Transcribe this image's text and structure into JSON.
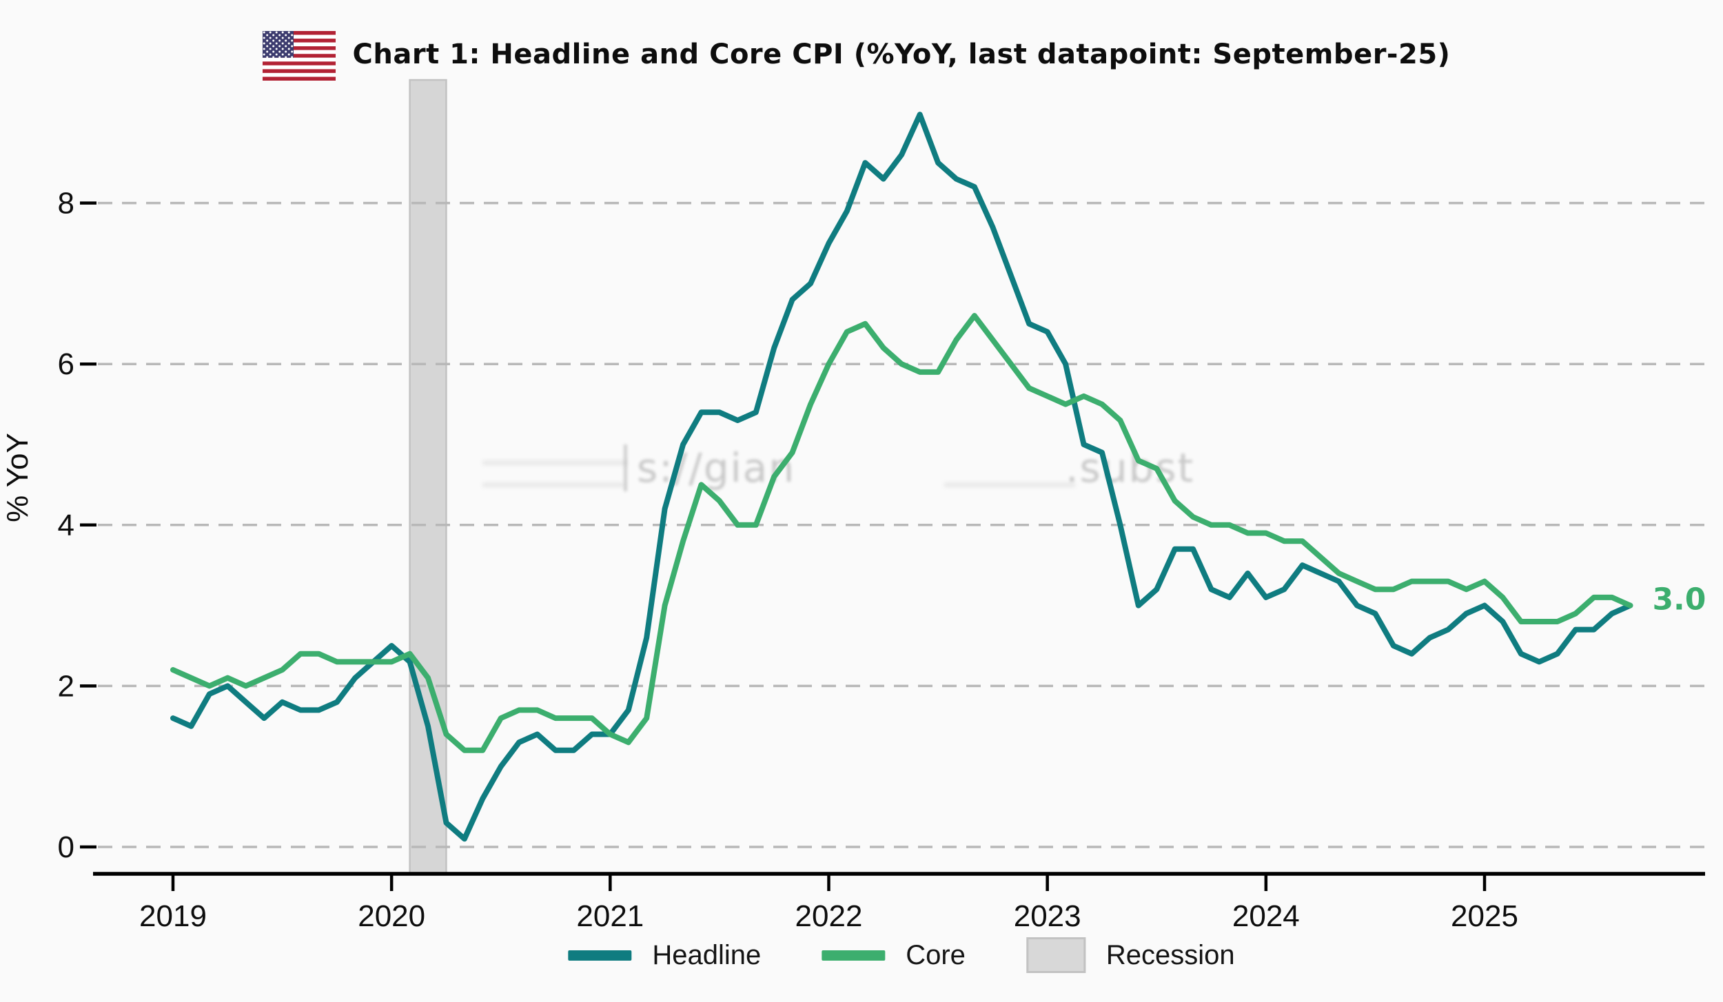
{
  "header": {
    "title": "Chart 1: Headline and Core CPI (%YoY, last datapoint: September-25)",
    "flag_icon": "us-flag"
  },
  "watermark": {
    "left_text": "s://gian",
    "right_text": ".subst"
  },
  "legend": {
    "items": [
      {
        "label": "Headline",
        "swatch": "line",
        "color": "#0f7c80"
      },
      {
        "label": "Core",
        "swatch": "line",
        "color": "#3cae6e"
      },
      {
        "label": "Recession",
        "swatch": "box",
        "color": "#d8d8d8"
      }
    ]
  },
  "chart_data": {
    "type": "line",
    "title": "Chart 1: Headline and Core CPI (%YoY, last datapoint: September-25)",
    "xlabel": "",
    "ylabel": "% YoY",
    "grid": true,
    "legend_position": "bottom",
    "ylim": [
      -0.35,
      9.55
    ],
    "yticks": [
      0,
      2,
      4,
      6,
      8
    ],
    "xticks": [
      {
        "label": "2019",
        "month": "2019-01"
      },
      {
        "label": "2020",
        "month": "2020-01"
      },
      {
        "label": "2021",
        "month": "2021-01"
      },
      {
        "label": "2022",
        "month": "2022-01"
      },
      {
        "label": "2023",
        "month": "2023-01"
      },
      {
        "label": "2024",
        "month": "2024-01"
      },
      {
        "label": "2025",
        "month": "2025-01"
      }
    ],
    "x": [
      "2019-01",
      "2019-02",
      "2019-03",
      "2019-04",
      "2019-05",
      "2019-06",
      "2019-07",
      "2019-08",
      "2019-09",
      "2019-10",
      "2019-11",
      "2019-12",
      "2020-01",
      "2020-02",
      "2020-03",
      "2020-04",
      "2020-05",
      "2020-06",
      "2020-07",
      "2020-08",
      "2020-09",
      "2020-10",
      "2020-11",
      "2020-12",
      "2021-01",
      "2021-02",
      "2021-03",
      "2021-04",
      "2021-05",
      "2021-06",
      "2021-07",
      "2021-08",
      "2021-09",
      "2021-10",
      "2021-11",
      "2021-12",
      "2022-01",
      "2022-02",
      "2022-03",
      "2022-04",
      "2022-05",
      "2022-06",
      "2022-07",
      "2022-08",
      "2022-09",
      "2022-10",
      "2022-11",
      "2022-12",
      "2023-01",
      "2023-02",
      "2023-03",
      "2023-04",
      "2023-05",
      "2023-06",
      "2023-07",
      "2023-08",
      "2023-09",
      "2023-10",
      "2023-11",
      "2023-12",
      "2024-01",
      "2024-02",
      "2024-03",
      "2024-04",
      "2024-05",
      "2024-06",
      "2024-07",
      "2024-08",
      "2024-09",
      "2024-10",
      "2024-11",
      "2024-12",
      "2025-01",
      "2025-02",
      "2025-03",
      "2025-04",
      "2025-05",
      "2025-06",
      "2025-07",
      "2025-08",
      "2025-09"
    ],
    "series": [
      {
        "name": "Headline",
        "color": "#0f7c80",
        "values": [
          1.6,
          1.5,
          1.9,
          2.0,
          1.8,
          1.6,
          1.8,
          1.7,
          1.7,
          1.8,
          2.1,
          2.3,
          2.5,
          2.3,
          1.5,
          0.3,
          0.1,
          0.6,
          1.0,
          1.3,
          1.4,
          1.2,
          1.2,
          1.4,
          1.4,
          1.7,
          2.6,
          4.2,
          5.0,
          5.4,
          5.4,
          5.3,
          5.4,
          6.2,
          6.8,
          7.0,
          7.5,
          7.9,
          8.5,
          8.3,
          8.6,
          9.1,
          8.5,
          8.3,
          8.2,
          7.7,
          7.1,
          6.5,
          6.4,
          6.0,
          5.0,
          4.9,
          4.0,
          3.0,
          3.2,
          3.7,
          3.7,
          3.2,
          3.1,
          3.4,
          3.1,
          3.2,
          3.5,
          3.4,
          3.3,
          3.0,
          2.9,
          2.5,
          2.4,
          2.6,
          2.7,
          2.9,
          3.0,
          2.8,
          2.4,
          2.3,
          2.4,
          2.7,
          2.7,
          2.9,
          3.0
        ]
      },
      {
        "name": "Core",
        "color": "#3cae6e",
        "values": [
          2.2,
          2.1,
          2.0,
          2.1,
          2.0,
          2.1,
          2.2,
          2.4,
          2.4,
          2.3,
          2.3,
          2.3,
          2.3,
          2.4,
          2.1,
          1.4,
          1.2,
          1.2,
          1.6,
          1.7,
          1.7,
          1.6,
          1.6,
          1.6,
          1.4,
          1.3,
          1.6,
          3.0,
          3.8,
          4.5,
          4.3,
          4.0,
          4.0,
          4.6,
          4.9,
          5.5,
          6.0,
          6.4,
          6.5,
          6.2,
          6.0,
          5.9,
          5.9,
          6.3,
          6.6,
          6.3,
          6.0,
          5.7,
          5.6,
          5.5,
          5.6,
          5.5,
          5.3,
          4.8,
          4.7,
          4.3,
          4.1,
          4.0,
          4.0,
          3.9,
          3.9,
          3.8,
          3.8,
          3.6,
          3.4,
          3.3,
          3.2,
          3.2,
          3.3,
          3.3,
          3.3,
          3.2,
          3.3,
          3.1,
          2.8,
          2.8,
          2.8,
          2.9,
          3.1,
          3.1,
          3.0
        ]
      }
    ],
    "recession": {
      "label": "Recession",
      "start": "2020-02",
      "end": "2020-04",
      "fill": "#d6d6d6",
      "border": "#c2c2c2"
    },
    "end_label": {
      "text": "3.0",
      "value": 3.0,
      "color": "#3cae6e"
    },
    "grid_color": "#b8b8b8",
    "axis_color": "#000000"
  }
}
